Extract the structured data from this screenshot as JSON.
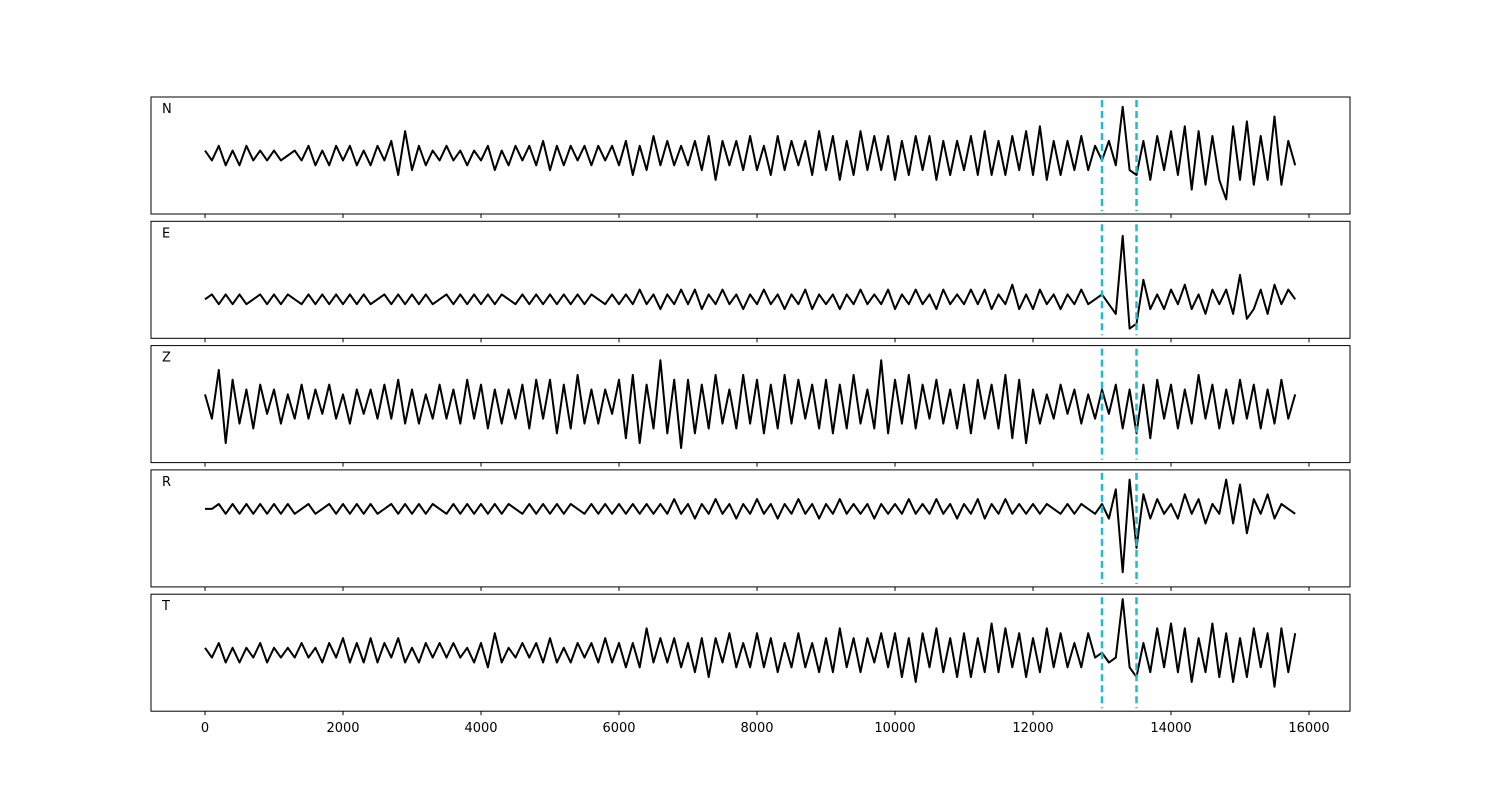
{
  "chart_data": {
    "type": "line",
    "x": [
      0,
      100,
      200,
      300,
      400,
      500,
      600,
      700,
      800,
      900,
      1000,
      1100,
      1200,
      1300,
      1400,
      1500,
      1600,
      1700,
      1800,
      1900,
      2000,
      2100,
      2200,
      2300,
      2400,
      2500,
      2600,
      2700,
      2800,
      2900,
      3000,
      3100,
      3200,
      3300,
      3400,
      3500,
      3600,
      3700,
      3800,
      3900,
      4000,
      4100,
      4200,
      4300,
      4400,
      4500,
      4600,
      4700,
      4800,
      4900,
      5000,
      5100,
      5200,
      5300,
      5400,
      5500,
      5600,
      5700,
      5800,
      5900,
      6000,
      6100,
      6200,
      6300,
      6400,
      6500,
      6600,
      6700,
      6800,
      6900,
      7000,
      7100,
      7200,
      7300,
      7400,
      7500,
      7600,
      7700,
      7800,
      7900,
      8000,
      8100,
      8200,
      8300,
      8400,
      8500,
      8600,
      8700,
      8800,
      8900,
      9000,
      9100,
      9200,
      9300,
      9400,
      9500,
      9600,
      9700,
      9800,
      9900,
      10000,
      10100,
      10200,
      10300,
      10400,
      10500,
      10600,
      10700,
      10800,
      10900,
      11000,
      11100,
      11200,
      11300,
      11400,
      11500,
      11600,
      11700,
      11800,
      11900,
      12000,
      12100,
      12200,
      12300,
      12400,
      12500,
      12600,
      12700,
      12800,
      12900,
      13000,
      13100,
      13200,
      13300,
      13400,
      13500,
      13600,
      13700,
      13800,
      13900,
      14000,
      14100,
      14200,
      14300,
      14400,
      14500,
      14600,
      14700,
      14800,
      14900,
      15000,
      15100,
      15200,
      15300,
      15400,
      15500,
      15600,
      15700,
      15800
    ],
    "xlim": [
      -783,
      16594
    ],
    "xticks": [
      0,
      2000,
      4000,
      6000,
      8000,
      10000,
      12000,
      14000,
      16000
    ],
    "line_color": "#000000",
    "vlines": {
      "values": [
        13000,
        13500
      ],
      "color": "#17becf"
    },
    "panels": [
      {
        "label": "N",
        "ylim": [
          -12,
          12
        ],
        "values": [
          1,
          -1,
          2,
          -2,
          1,
          -2,
          2,
          -1,
          1,
          -1,
          1,
          -1,
          0,
          1,
          -1,
          2,
          -2,
          1,
          -2,
          2,
          -1,
          2,
          -2,
          1,
          -2,
          2,
          -1,
          3,
          -4,
          5,
          -3,
          2,
          -2,
          1,
          -1,
          2,
          -1,
          1,
          -2,
          1,
          -1,
          2,
          -3,
          1,
          -2,
          2,
          -1,
          2,
          -2,
          3,
          -3,
          2,
          -2,
          2,
          -1,
          2,
          -2,
          2,
          -1,
          2,
          -2,
          3,
          -4,
          2,
          -3,
          4,
          -2,
          3,
          -2,
          2,
          -2,
          3,
          -3,
          4,
          -5,
          3,
          -2,
          3,
          -3,
          4,
          -3,
          2,
          -4,
          4,
          -3,
          3,
          -2,
          3,
          -4,
          5,
          -3,
          4,
          -5,
          3,
          -4,
          5,
          -3,
          4,
          -3,
          4,
          -5,
          3,
          -4,
          4,
          -3,
          4,
          -5,
          3,
          -4,
          3,
          -3,
          4,
          -4,
          5,
          -4,
          3,
          -4,
          4,
          -3,
          5,
          -4,
          6,
          -5,
          3,
          -4,
          3,
          -3,
          4,
          -3,
          2,
          -1,
          3,
          -2,
          10,
          -3,
          -4,
          3,
          -5,
          4,
          -3,
          5,
          -4,
          6,
          -7,
          5,
          -6,
          4,
          -5,
          -9,
          6,
          -5,
          7,
          -6,
          4,
          -5,
          8,
          -6,
          3,
          -2
        ]
      },
      {
        "label": "E",
        "ylim": [
          -8,
          16
        ],
        "values": [
          0,
          1,
          -1,
          1,
          -1,
          1,
          -1,
          0,
          1,
          -1,
          1,
          -1,
          1,
          0,
          -1,
          1,
          -1,
          1,
          -1,
          1,
          -1,
          1,
          -1,
          1,
          -1,
          0,
          1,
          -1,
          1,
          -1,
          1,
          -1,
          1,
          -1,
          0,
          1,
          -1,
          1,
          -1,
          1,
          -1,
          1,
          -1,
          1,
          0,
          -1,
          1,
          -1,
          1,
          -1,
          1,
          -1,
          1,
          -1,
          1,
          -1,
          1,
          0,
          -1,
          1,
          -1,
          1,
          -1,
          2,
          -1,
          1,
          -2,
          1,
          -1,
          2,
          -1,
          2,
          -2,
          1,
          -1,
          2,
          -1,
          1,
          -2,
          1,
          -1,
          2,
          -1,
          1,
          -2,
          1,
          -1,
          2,
          -2,
          1,
          -1,
          1,
          -2,
          1,
          -1,
          2,
          -1,
          1,
          -1,
          2,
          -2,
          1,
          -1,
          2,
          -1,
          1,
          -2,
          2,
          -1,
          1,
          -1,
          2,
          -1,
          2,
          -2,
          1,
          -1,
          3,
          -2,
          1,
          -2,
          2,
          -1,
          1,
          -2,
          1,
          -1,
          2,
          -1,
          0,
          1,
          -1,
          -3,
          13,
          -6,
          -5,
          4,
          -2,
          1,
          -2,
          2,
          -1,
          3,
          -2,
          1,
          -3,
          2,
          -1,
          2,
          -3,
          5,
          -4,
          -2,
          2,
          -3,
          3,
          -1,
          2,
          0
        ]
      },
      {
        "label": "Z",
        "ylim": [
          -12,
          12
        ],
        "values": [
          2,
          -3,
          7,
          -8,
          5,
          -4,
          3,
          -5,
          4,
          -2,
          3,
          -4,
          2,
          -3,
          4,
          -3,
          3,
          -2,
          4,
          -3,
          2,
          -4,
          3,
          -2,
          3,
          -3,
          4,
          -3,
          5,
          -4,
          3,
          -4,
          2,
          -3,
          4,
          -3,
          3,
          -4,
          5,
          -3,
          4,
          -5,
          3,
          -4,
          3,
          -3,
          4,
          -5,
          5,
          -3,
          5,
          -6,
          4,
          -5,
          6,
          -4,
          3,
          -4,
          3,
          -2,
          5,
          -7,
          6,
          -8,
          4,
          -5,
          9,
          -6,
          5,
          -9,
          5,
          -6,
          4,
          -5,
          6,
          -4,
          3,
          -5,
          6,
          -4,
          5,
          -6,
          4,
          -5,
          6,
          -4,
          5,
          -3,
          4,
          -5,
          5,
          -6,
          4,
          -5,
          6,
          -4,
          3,
          -5,
          9,
          -6,
          5,
          -4,
          6,
          -5,
          4,
          -3,
          5,
          -4,
          3,
          -5,
          4,
          -6,
          5,
          -3,
          4,
          -5,
          6,
          -7,
          5,
          -8,
          3,
          -4,
          2,
          -3,
          4,
          -2,
          3,
          -4,
          2,
          -3,
          3,
          -2,
          4,
          -5,
          3,
          -6,
          4,
          -7,
          5,
          -3,
          4,
          -5,
          3,
          -4,
          6,
          -3,
          4,
          -5,
          3,
          -4,
          5,
          -3,
          4,
          -5,
          3,
          -4,
          5,
          -3,
          2
        ]
      },
      {
        "label": "R",
        "ylim": [
          -16,
          8
        ],
        "values": [
          0,
          0,
          1,
          -1,
          1,
          -1,
          1,
          -1,
          1,
          -1,
          1,
          -1,
          1,
          -1,
          0,
          1,
          -1,
          0,
          1,
          -1,
          1,
          -1,
          1,
          -1,
          1,
          -1,
          0,
          1,
          -1,
          1,
          -1,
          1,
          -1,
          1,
          0,
          -1,
          1,
          -1,
          1,
          -1,
          1,
          -1,
          1,
          -1,
          1,
          0,
          -1,
          1,
          -1,
          1,
          -1,
          1,
          -1,
          1,
          0,
          -1,
          1,
          -1,
          1,
          -1,
          1,
          -1,
          1,
          -1,
          1,
          -1,
          1,
          -1,
          2,
          -1,
          1,
          -2,
          1,
          -1,
          2,
          -1,
          1,
          -2,
          1,
          -1,
          2,
          -1,
          1,
          -2,
          1,
          -1,
          2,
          -1,
          1,
          -2,
          1,
          -1,
          2,
          -1,
          1,
          -1,
          1,
          -2,
          1,
          -1,
          1,
          -1,
          2,
          -1,
          1,
          -1,
          2,
          -1,
          1,
          -2,
          1,
          -1,
          2,
          -2,
          1,
          -1,
          2,
          -1,
          1,
          -1,
          1,
          -1,
          1,
          0,
          -1,
          1,
          -1,
          1,
          0,
          -1,
          1,
          -2,
          4,
          -13,
          6,
          -8,
          3,
          -2,
          2,
          -1,
          1,
          -2,
          3,
          -1,
          2,
          -3,
          1,
          -1,
          6,
          -3,
          5,
          -5,
          2,
          -1,
          3,
          -2,
          1,
          0,
          -1
        ]
      },
      {
        "label": "T",
        "ylim": [
          -12,
          12
        ],
        "values": [
          1,
          -1,
          2,
          -2,
          1,
          -2,
          1,
          -1,
          2,
          -2,
          1,
          -1,
          1,
          -1,
          2,
          -1,
          1,
          -2,
          2,
          -1,
          3,
          -2,
          2,
          -2,
          3,
          -2,
          2,
          -1,
          3,
          -2,
          1,
          -2,
          2,
          -1,
          2,
          -1,
          2,
          -1,
          1,
          -2,
          2,
          -3,
          4,
          -2,
          1,
          -1,
          2,
          -1,
          2,
          -2,
          3,
          -2,
          1,
          -2,
          2,
          -1,
          2,
          -2,
          3,
          -2,
          2,
          -3,
          2,
          -3,
          5,
          -2,
          3,
          -2,
          3,
          -3,
          2,
          -4,
          3,
          -5,
          3,
          -2,
          4,
          -3,
          2,
          -3,
          4,
          -3,
          3,
          -4,
          2,
          -3,
          4,
          -3,
          2,
          -4,
          3,
          -4,
          5,
          -3,
          3,
          -4,
          3,
          -2,
          4,
          -3,
          4,
          -5,
          3,
          -6,
          4,
          -3,
          5,
          -4,
          3,
          -5,
          4,
          -5,
          3,
          -4,
          6,
          -4,
          5,
          -3,
          4,
          -5,
          3,
          -4,
          5,
          -3,
          4,
          -3,
          2,
          -3,
          4,
          -1,
          0,
          -2,
          -1,
          11,
          -3,
          -5,
          2,
          -4,
          5,
          -3,
          6,
          -4,
          5,
          -6,
          3,
          -4,
          6,
          -5,
          4,
          -6,
          3,
          -5,
          5,
          -3,
          4,
          -7,
          5,
          -4,
          4
        ]
      }
    ]
  }
}
